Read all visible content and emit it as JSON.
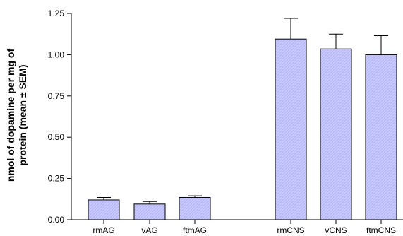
{
  "chart_data": {
    "type": "bar",
    "ylabel_line1": "nmol of dopamine per mg of",
    "ylabel_line2": "protein (mean ± SEM)",
    "xlabel": "",
    "ylim": [
      0,
      1.25
    ],
    "yticks": [
      "0.00",
      "0.25",
      "0.50",
      "0.75",
      "1.00",
      "1.25"
    ],
    "categories": [
      "rmAG",
      "vAG",
      "ftmAG",
      "rmCNS",
      "vCNS",
      "ftmCNS"
    ],
    "values": [
      0.12,
      0.095,
      0.135,
      1.095,
      1.035,
      1.0
    ],
    "errors": [
      0.015,
      0.015,
      0.01,
      0.125,
      0.09,
      0.115
    ],
    "bar_color": "#c8c8ff",
    "grid": false
  }
}
